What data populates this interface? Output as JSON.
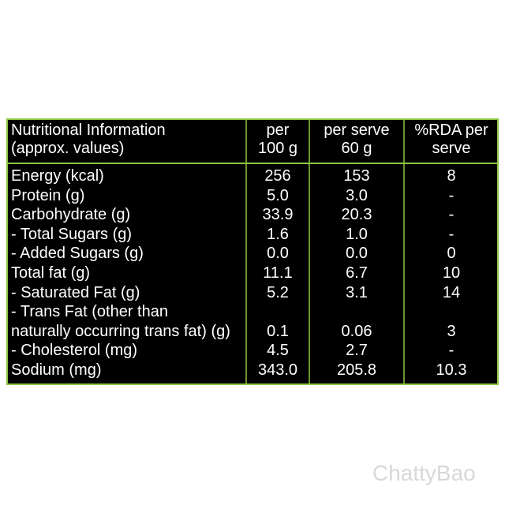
{
  "table": {
    "header": [
      [
        "Nutritional Information",
        "(approx. values)"
      ],
      [
        "per",
        "100 g"
      ],
      [
        "per serve",
        "60 g"
      ],
      [
        "%RDA per",
        "serve"
      ]
    ],
    "rows": [
      {
        "label": [
          "Energy (kcal)"
        ],
        "values": [
          "256",
          "153",
          "8"
        ]
      },
      {
        "label": [
          "Protein (g)"
        ],
        "values": [
          "5.0",
          "3.0",
          "-"
        ]
      },
      {
        "label": [
          "Carbohydrate (g)"
        ],
        "values": [
          "33.9",
          "20.3",
          "-"
        ]
      },
      {
        "label": [
          "- Total Sugars (g)"
        ],
        "values": [
          "1.6",
          "1.0",
          "-"
        ]
      },
      {
        "label": [
          "- Added Sugars (g)"
        ],
        "values": [
          "0.0",
          "0.0",
          "0"
        ]
      },
      {
        "label": [
          "Total fat (g)"
        ],
        "values": [
          "11.1",
          "6.7",
          "10"
        ]
      },
      {
        "label": [
          "- Saturated Fat (g)"
        ],
        "values": [
          "5.2",
          "3.1",
          "14"
        ]
      },
      {
        "label": [
          "- Trans Fat (other than",
          "naturally occurring trans fat) (g)"
        ],
        "values": [
          "0.1",
          "0.06",
          "3"
        ]
      },
      {
        "label": [
          "- Cholesterol (mg)"
        ],
        "values": [
          "4.5",
          "2.7",
          "-"
        ]
      },
      {
        "label": [
          "Sodium (mg)"
        ],
        "values": [
          "343.0",
          "205.8",
          "10.3"
        ]
      }
    ]
  },
  "watermark": "ChattyBao"
}
